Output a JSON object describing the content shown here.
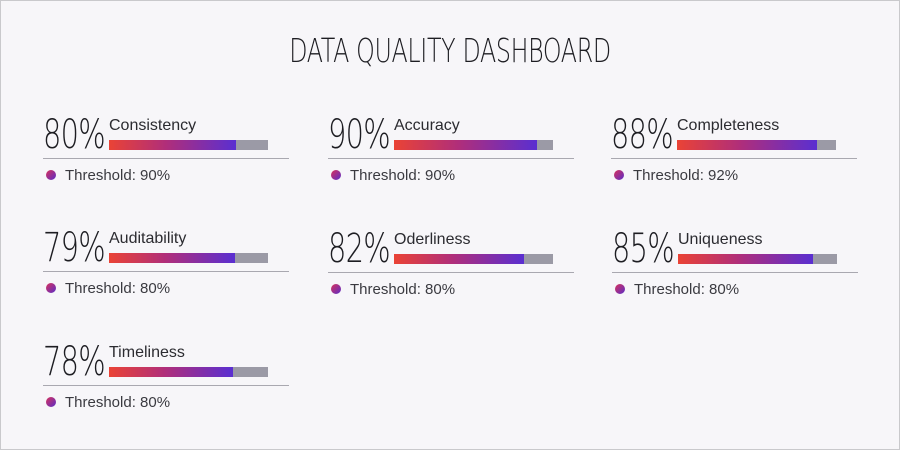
{
  "title": "DATA QUALITY DASHBOARD",
  "metrics": [
    {
      "name": "Consistency",
      "percent_text": "80%",
      "fill": 0.8,
      "threshold": "Threshold: 90%"
    },
    {
      "name": "Accuracy",
      "percent_text": "90%",
      "fill": 0.9,
      "threshold": "Threshold: 90%"
    },
    {
      "name": "Completeness",
      "percent_text": "88%",
      "fill": 0.88,
      "threshold": "Threshold: 92%"
    },
    {
      "name": "Auditability",
      "percent_text": "79%",
      "fill": 0.79,
      "threshold": "Threshold: 80%"
    },
    {
      "name": "Oderliness",
      "percent_text": "82%",
      "fill": 0.82,
      "threshold": "Threshold: 80%"
    },
    {
      "name": "Uniqueness",
      "percent_text": "85%",
      "fill": 0.85,
      "threshold": "Threshold: 80%"
    },
    {
      "name": "Timeliness",
      "percent_text": "78%",
      "fill": 0.78,
      "threshold": "Threshold: 80%"
    }
  ],
  "colors": {
    "bar_gradient_start": "#ea4335",
    "bar_gradient_end": "#5a2fd1",
    "bar_track": "#9b9aa6",
    "background": "#f7f6f9"
  }
}
